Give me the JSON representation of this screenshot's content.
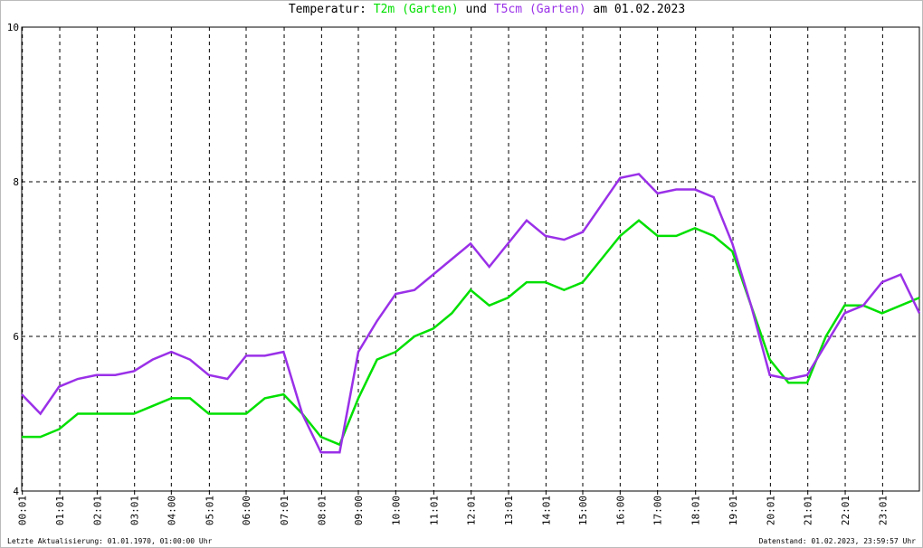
{
  "chart_data": {
    "type": "line",
    "title_prefix": "Temperatur:",
    "title_join": "und",
    "title_date": "am 01.02.2023",
    "footer_left": "Letzte Aktualisierung: 01.01.1970, 01:00:00 Uhr",
    "footer_right": "Datenstand: 01.02.2023, 23:59:57 Uhr",
    "x": [
      0,
      0.5,
      1,
      1.5,
      2,
      2.5,
      3,
      3.5,
      4,
      4.5,
      5,
      5.5,
      6,
      6.5,
      7,
      7.5,
      8,
      8.5,
      9,
      9.5,
      10,
      10.5,
      11,
      11.5,
      12,
      12.5,
      13,
      13.5,
      14,
      14.5,
      15,
      15.5,
      16,
      16.5,
      17,
      17.5,
      18,
      18.5,
      19,
      19.5,
      20,
      20.5,
      21,
      21.5,
      22,
      22.5,
      23,
      23.5,
      24
    ],
    "series": [
      {
        "name": "T2m (Garten)",
        "color": "#00e000",
        "values": [
          4.7,
          4.7,
          4.8,
          5.0,
          5.0,
          5.0,
          5.0,
          5.1,
          5.2,
          5.2,
          5.0,
          5.0,
          5.0,
          5.2,
          5.25,
          5.0,
          4.7,
          4.6,
          5.2,
          5.7,
          5.8,
          6.0,
          6.1,
          6.3,
          6.6,
          6.4,
          6.5,
          6.7,
          6.7,
          6.6,
          6.7,
          7.0,
          7.3,
          7.5,
          7.3,
          7.3,
          7.4,
          7.3,
          7.1,
          6.4,
          5.7,
          5.4,
          5.4,
          6.0,
          6.4,
          6.4,
          6.3,
          6.4,
          6.5
        ]
      },
      {
        "name": "T5cm (Garten)",
        "color": "#9a30e8",
        "values": [
          5.25,
          5.0,
          5.35,
          5.45,
          5.5,
          5.5,
          5.55,
          5.7,
          5.8,
          5.7,
          5.5,
          5.45,
          5.75,
          5.75,
          5.8,
          5.0,
          4.5,
          4.5,
          5.8,
          6.2,
          6.55,
          6.6,
          6.8,
          7.0,
          7.2,
          6.9,
          7.2,
          7.5,
          7.3,
          7.25,
          7.35,
          7.7,
          8.05,
          8.1,
          7.85,
          7.9,
          7.9,
          7.8,
          7.2,
          6.4,
          5.5,
          5.45,
          5.5,
          5.9,
          6.3,
          6.4,
          6.7,
          6.8,
          6.3
        ]
      }
    ],
    "xlim": [
      0,
      24
    ],
    "xticks": [
      {
        "value": 0.017,
        "label": "00:01"
      },
      {
        "value": 1.017,
        "label": "01:01"
      },
      {
        "value": 2.017,
        "label": "02:01"
      },
      {
        "value": 3.017,
        "label": "03:01"
      },
      {
        "value": 4,
        "label": "04:00"
      },
      {
        "value": 5.017,
        "label": "05:01"
      },
      {
        "value": 6,
        "label": "06:00"
      },
      {
        "value": 7.017,
        "label": "07:01"
      },
      {
        "value": 8.017,
        "label": "08:01"
      },
      {
        "value": 9,
        "label": "09:00"
      },
      {
        "value": 10,
        "label": "10:00"
      },
      {
        "value": 11.017,
        "label": "11:01"
      },
      {
        "value": 12.017,
        "label": "12:01"
      },
      {
        "value": 13.017,
        "label": "13:01"
      },
      {
        "value": 14.017,
        "label": "14:01"
      },
      {
        "value": 15,
        "label": "15:00"
      },
      {
        "value": 16,
        "label": "16:00"
      },
      {
        "value": 17,
        "label": "17:00"
      },
      {
        "value": 18.017,
        "label": "18:01"
      },
      {
        "value": 19.017,
        "label": "19:01"
      },
      {
        "value": 20.017,
        "label": "20:01"
      },
      {
        "value": 21.017,
        "label": "21:01"
      },
      {
        "value": 22.017,
        "label": "22:01"
      },
      {
        "value": 23.017,
        "label": "23:01"
      }
    ],
    "ylim": [
      4,
      10
    ],
    "yticks": [
      4,
      6,
      8,
      10
    ],
    "grid": true
  }
}
